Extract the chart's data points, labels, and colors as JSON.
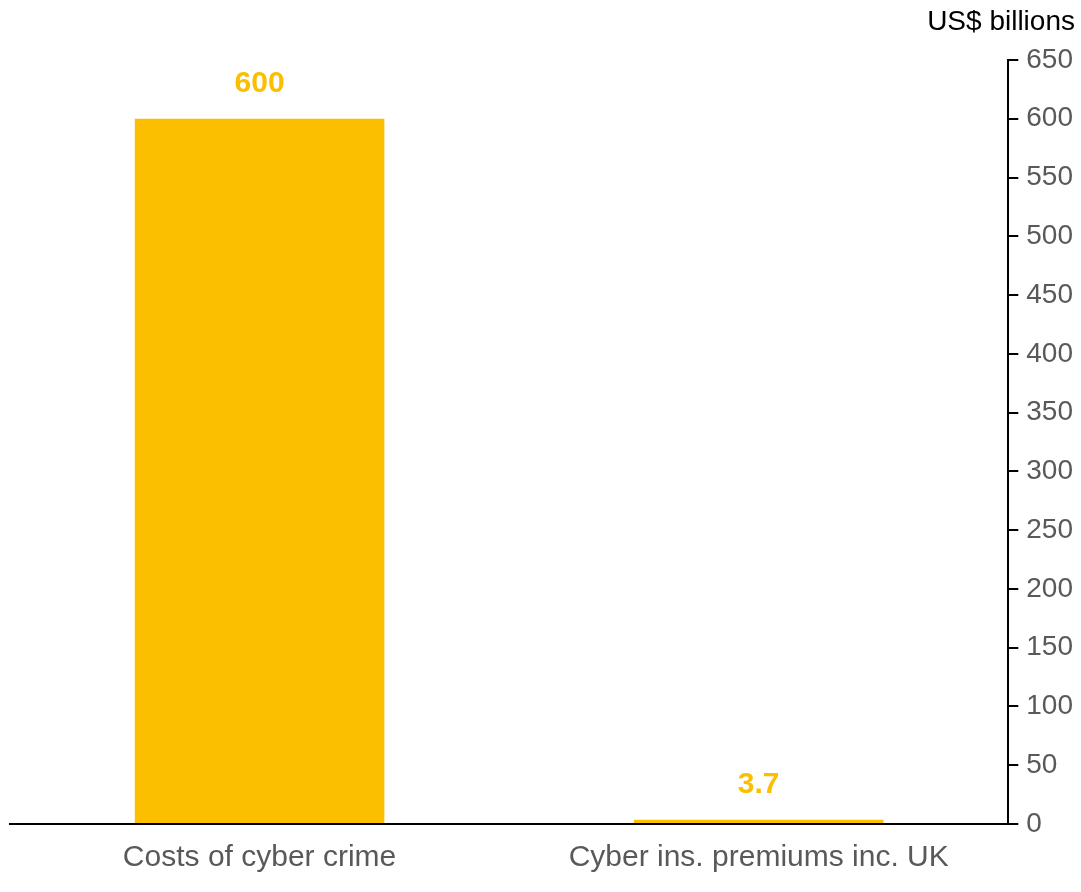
{
  "chart_data": {
    "type": "bar",
    "ylabel": "US$ billions",
    "categories": [
      "Costs of cyber crime",
      "Cyber ins. premiums inc. UK"
    ],
    "values": [
      600,
      3.7
    ],
    "color": "#fbbf00",
    "data_labels": true,
    "ylim": [
      0,
      650
    ],
    "yticks": [
      0,
      50,
      100,
      150,
      200,
      250,
      300,
      350,
      400,
      450,
      500,
      550,
      600,
      650
    ],
    "grid": false,
    "legend": false
  }
}
